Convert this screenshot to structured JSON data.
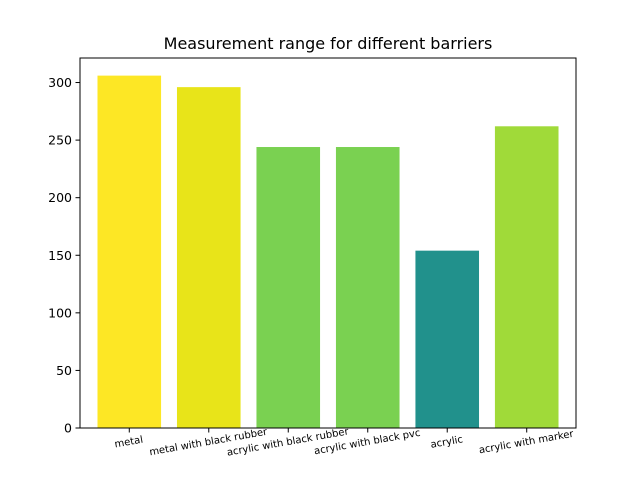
{
  "chart_data": {
    "type": "bar",
    "title": "Measurement range for different barriers",
    "xlabel": "",
    "ylabel": "",
    "categories": [
      "metal",
      "metal with black rubber",
      "acrylic with black rubber",
      "acrylic with black pvc",
      "acrylic",
      "acrylic with marker"
    ],
    "values": [
      306,
      296,
      244,
      244,
      154,
      262
    ],
    "colors": [
      "#fde725",
      "#e8e419",
      "#7ad151",
      "#7ad151",
      "#21918c",
      "#a0da39"
    ],
    "yticks": [
      0,
      50,
      100,
      150,
      200,
      250,
      300
    ],
    "ylim": [
      0,
      321.3
    ],
    "grid": false,
    "legend": "none"
  }
}
